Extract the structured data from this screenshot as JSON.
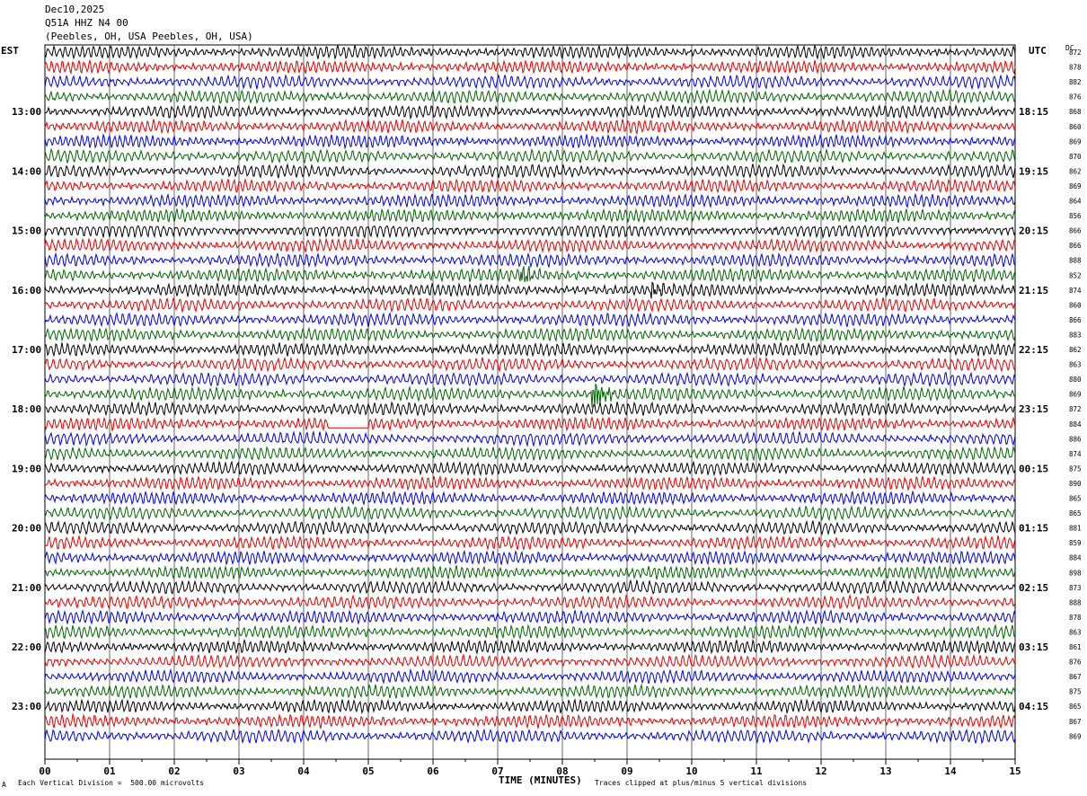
{
  "header": {
    "date": "Dec10,2025",
    "station": "Q51A HHZ N4 00",
    "location": "(Peebles, OH, USA Peebles, OH, USA)"
  },
  "labels": {
    "left_tz": "EST",
    "right_tz": "UTC",
    "dc": "DC",
    "xlabel": "TIME (MINUTES)",
    "scale_note": "Each Vertical Division =  500.00 microvolts",
    "clip_note": "Traces clipped at plus/minus 5 vertical divisions",
    "corner_mark": "A"
  },
  "colors": {
    "trace_cycle": [
      "#000000",
      "#e00000",
      "#0000e0",
      "#006400"
    ],
    "grid": "#000000"
  },
  "chart_data": {
    "type": "line",
    "title": "",
    "xlabel": "TIME (MINUTES)",
    "xlim": [
      0,
      15
    ],
    "x_ticks": [
      "00",
      "01",
      "02",
      "03",
      "04",
      "05",
      "06",
      "07",
      "08",
      "09",
      "10",
      "11",
      "12",
      "13",
      "14",
      "15"
    ],
    "rows_per_hour": 4,
    "minutes_per_row": 15,
    "left_hour_labels": [
      "13:00",
      "14:00",
      "15:00",
      "16:00",
      "17:00",
      "18:00",
      "19:00",
      "20:00",
      "21:00",
      "22:00",
      "23:00"
    ],
    "right_hour_labels": [
      "18:15",
      "19:15",
      "20:15",
      "21:15",
      "22:15",
      "23:15",
      "00:15",
      "01:15",
      "02:15",
      "03:15",
      "04:15"
    ],
    "dc_offsets": [
      872,
      878,
      882,
      876,
      868,
      860,
      869,
      870,
      862,
      869,
      864,
      856,
      866,
      866,
      888,
      852,
      874,
      860,
      866,
      883,
      862,
      863,
      880,
      869,
      872,
      884,
      886,
      874,
      875,
      890,
      865,
      865,
      881,
      859,
      884,
      898,
      873,
      888,
      878,
      863,
      861,
      876,
      867,
      875,
      865,
      867,
      869
    ],
    "events": [
      {
        "row": 15,
        "minute": 7.4,
        "amp": 1.8
      },
      {
        "row": 16,
        "minute": 9.4,
        "amp": 1.4
      },
      {
        "row": 23,
        "minute": 8.5,
        "amp": 3.0
      }
    ],
    "flat_segment": {
      "row": 25,
      "from_minute": 4.4,
      "to_minute": 5.0
    }
  }
}
